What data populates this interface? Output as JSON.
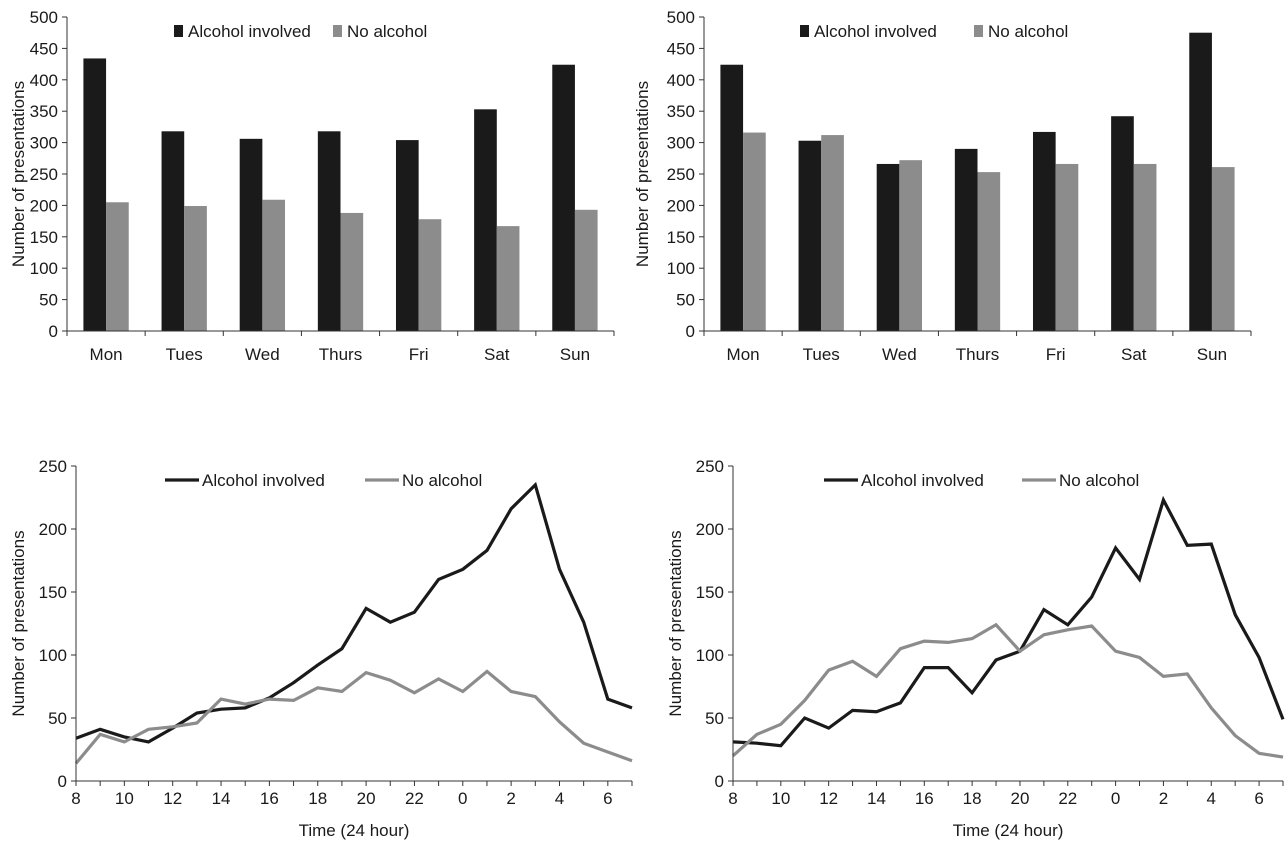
{
  "chart_data": [
    {
      "type": "bar",
      "ylabel": "Number of presentations",
      "ylim": [
        0,
        500
      ],
      "yticks": [
        0,
        50,
        100,
        150,
        200,
        250,
        300,
        350,
        400,
        450,
        500
      ],
      "categories": [
        "Mon",
        "Tues",
        "Wed",
        "Thurs",
        "Fri",
        "Sat",
        "Sun"
      ],
      "legend_position": "top",
      "series": [
        {
          "name": "Alcohol involved",
          "color": "#1a1a1a",
          "values": [
            434,
            318,
            306,
            318,
            304,
            353,
            424
          ]
        },
        {
          "name": "No alcohol",
          "color": "#8c8c8c",
          "values": [
            205,
            199,
            209,
            188,
            178,
            167,
            193
          ]
        }
      ]
    },
    {
      "type": "bar",
      "ylabel": "Number of presentations",
      "ylim": [
        0,
        500
      ],
      "yticks": [
        0,
        50,
        100,
        150,
        200,
        250,
        300,
        350,
        400,
        450,
        500
      ],
      "categories": [
        "Mon",
        "Tues",
        "Wed",
        "Thurs",
        "Fri",
        "Sat",
        "Sun"
      ],
      "legend_position": "top",
      "series": [
        {
          "name": "Alcohol involved",
          "color": "#1a1a1a",
          "values": [
            424,
            303,
            266,
            290,
            317,
            342,
            475
          ]
        },
        {
          "name": "No alcohol",
          "color": "#8c8c8c",
          "values": [
            316,
            312,
            272,
            253,
            266,
            266,
            261
          ]
        }
      ]
    },
    {
      "type": "line",
      "xlabel": "Time (24 hour)",
      "ylabel": "Number of presentations",
      "ylim": [
        0,
        250
      ],
      "yticks": [
        0,
        50,
        100,
        150,
        200,
        250
      ],
      "x": [
        "8",
        "9",
        "10",
        "11",
        "12",
        "13",
        "14",
        "15",
        "16",
        "17",
        "18",
        "19",
        "20",
        "21",
        "22",
        "23",
        "0",
        "1",
        "2",
        "3",
        "4",
        "5",
        "6",
        "7"
      ],
      "xtick_labels": [
        "8",
        "",
        "10",
        "",
        "12",
        "",
        "14",
        "",
        "16",
        "",
        "18",
        "",
        "20",
        "",
        "22",
        "",
        "0",
        "",
        "2",
        "",
        "4",
        "",
        "6",
        ""
      ],
      "legend_position": "top",
      "series": [
        {
          "name": "Alcohol involved",
          "color": "#1a1a1a",
          "values": [
            34,
            41,
            35,
            31,
            42,
            54,
            57,
            58,
            66,
            78,
            92,
            105,
            137,
            126,
            134,
            160,
            168,
            183,
            216,
            235,
            168,
            126,
            65,
            58
          ]
        },
        {
          "name": "No alcohol",
          "color": "#8c8c8c",
          "values": [
            14,
            37,
            31,
            41,
            43,
            46,
            65,
            61,
            65,
            64,
            74,
            71,
            86,
            80,
            70,
            81,
            71,
            87,
            71,
            67,
            47,
            30,
            23,
            16
          ]
        }
      ]
    },
    {
      "type": "line",
      "xlabel": "Time (24 hour)",
      "ylabel": "Number of presentations",
      "ylim": [
        0,
        250
      ],
      "yticks": [
        0,
        50,
        100,
        150,
        200,
        250
      ],
      "x": [
        "8",
        "9",
        "10",
        "11",
        "12",
        "13",
        "14",
        "15",
        "16",
        "17",
        "18",
        "19",
        "20",
        "21",
        "22",
        "23",
        "0",
        "1",
        "2",
        "3",
        "4",
        "5",
        "6",
        "7"
      ],
      "xtick_labels": [
        "8",
        "",
        "10",
        "",
        "12",
        "",
        "14",
        "",
        "16",
        "",
        "18",
        "",
        "20",
        "",
        "22",
        "",
        "0",
        "",
        "2",
        "",
        "4",
        "",
        "6",
        ""
      ],
      "legend_position": "top",
      "series": [
        {
          "name": "Alcohol involved",
          "color": "#1a1a1a",
          "values": [
            31,
            30,
            28,
            50,
            42,
            56,
            55,
            62,
            90,
            90,
            70,
            96,
            103,
            136,
            124,
            146,
            185,
            160,
            223,
            187,
            188,
            132,
            98,
            49
          ]
        },
        {
          "name": "No alcohol",
          "color": "#8c8c8c",
          "values": [
            20,
            37,
            45,
            64,
            88,
            95,
            83,
            105,
            111,
            110,
            113,
            124,
            103,
            116,
            120,
            123,
            103,
            98,
            83,
            85,
            58,
            36,
            22,
            19
          ]
        }
      ]
    }
  ]
}
